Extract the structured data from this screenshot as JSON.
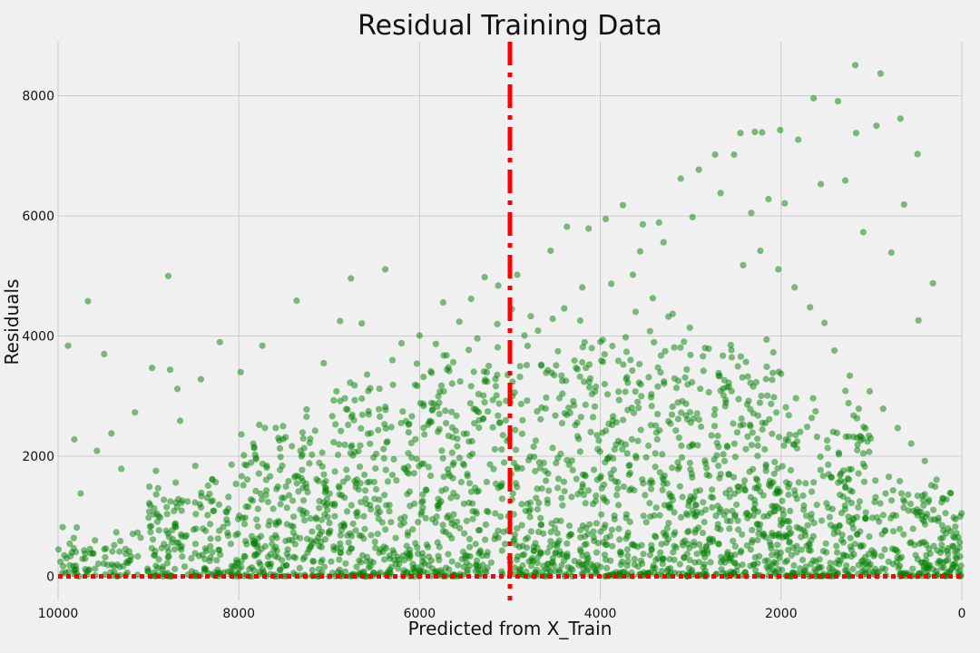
{
  "chart_data": {
    "type": "scatter",
    "title": "Residual Training Data",
    "xlabel": "Predicted from X_Train",
    "ylabel": "Residuals",
    "xlim": [
      10000,
      0
    ],
    "ylim": [
      -400,
      8900
    ],
    "x_inverted": true,
    "grid": true,
    "background": "#f0f0f0",
    "grid_color": "#cbcbcb",
    "point_color": "#008000",
    "line_color": "#ff0000",
    "x_ticks": [
      10000,
      8000,
      6000,
      4000,
      2000,
      0
    ],
    "x_tick_labels": [
      "10000",
      "8000",
      "6000",
      "4000",
      "2000",
      "0"
    ],
    "y_ticks": [
      0,
      2000,
      4000,
      6000,
      8000
    ],
    "y_tick_labels": [
      "0",
      "2000",
      "4000",
      "6000",
      "8000"
    ],
    "reference_lines": [
      {
        "orientation": "horizontal",
        "value": 0,
        "style": "dotted"
      },
      {
        "orientation": "vertical",
        "value": 5000,
        "style": "dashdot"
      }
    ],
    "series": [
      {
        "points": [
          [
            9950,
            820
          ],
          [
            9890,
            3840
          ],
          [
            9820,
            2280
          ],
          [
            9750,
            1380
          ],
          [
            9670,
            4580
          ],
          [
            9570,
            2090
          ],
          [
            9490,
            3700
          ],
          [
            9410,
            2380
          ],
          [
            9300,
            1790
          ],
          [
            9150,
            2730
          ],
          [
            8960,
            3470
          ],
          [
            8780,
            5000
          ],
          [
            8760,
            3440
          ],
          [
            8680,
            3120
          ],
          [
            8650,
            2590
          ],
          [
            8420,
            3280
          ],
          [
            8210,
            3900
          ],
          [
            7980,
            3400
          ],
          [
            7740,
            3840
          ],
          [
            7360,
            4590
          ],
          [
            7060,
            3550
          ],
          [
            6880,
            4250
          ],
          [
            6760,
            4960
          ],
          [
            6640,
            4210
          ],
          [
            6380,
            5110
          ],
          [
            6200,
            3880
          ],
          [
            6000,
            4010
          ],
          [
            5740,
            4560
          ],
          [
            5430,
            4620
          ],
          [
            5280,
            4980
          ],
          [
            5130,
            4840
          ],
          [
            4980,
            4450
          ],
          [
            4920,
            5020
          ],
          [
            4770,
            4330
          ],
          [
            4550,
            5420
          ],
          [
            4370,
            5820
          ],
          [
            4130,
            5790
          ],
          [
            3940,
            5950
          ],
          [
            3750,
            6180
          ],
          [
            3530,
            5860
          ],
          [
            3350,
            5890
          ],
          [
            3110,
            6620
          ],
          [
            2910,
            6770
          ],
          [
            2730,
            7020
          ],
          [
            2520,
            7020
          ],
          [
            2450,
            7380
          ],
          [
            2290,
            7400
          ],
          [
            2210,
            7390
          ],
          [
            2010,
            7430
          ],
          [
            1810,
            7270
          ],
          [
            1640,
            7960
          ],
          [
            1560,
            6530
          ],
          [
            1370,
            7910
          ],
          [
            1290,
            6590
          ],
          [
            1170,
            7380
          ],
          [
            945,
            7500
          ],
          [
            900,
            8370
          ],
          [
            1180,
            8510
          ],
          [
            680,
            7620
          ],
          [
            490,
            7030
          ],
          [
            320,
            4880
          ],
          [
            480,
            4260
          ],
          [
            640,
            6190
          ],
          [
            780,
            5390
          ],
          [
            1090,
            5730
          ],
          [
            1960,
            6210
          ],
          [
            2140,
            6280
          ],
          [
            2330,
            6050
          ],
          [
            2670,
            6380
          ],
          [
            2980,
            5980
          ],
          [
            3300,
            5560
          ],
          [
            3560,
            5410
          ],
          [
            3640,
            5020
          ],
          [
            3880,
            4870
          ],
          [
            4200,
            4810
          ],
          [
            4400,
            4460
          ],
          [
            4690,
            4090
          ],
          [
            5140,
            4200
          ],
          [
            5360,
            3960
          ],
          [
            5560,
            4240
          ],
          [
            5820,
            3870
          ],
          [
            6030,
            3540
          ],
          [
            6300,
            3600
          ],
          [
            6580,
            3360
          ],
          [
            6920,
            3080
          ],
          [
            7250,
            2780
          ],
          [
            7510,
            2500
          ],
          [
            7830,
            2150
          ],
          [
            8080,
            1860
          ],
          [
            8340,
            1510
          ],
          [
            8640,
            1220
          ],
          [
            8870,
            980
          ],
          [
            9120,
            730
          ],
          [
            9380,
            520
          ],
          [
            9610,
            380
          ],
          [
            9830,
            170
          ],
          [
            2470,
            2950
          ],
          [
            2600,
            3150
          ],
          [
            2800,
            3790
          ],
          [
            3010,
            4140
          ],
          [
            3200,
            4370
          ],
          [
            3420,
            4630
          ],
          [
            3720,
            3980
          ],
          [
            3970,
            3570
          ],
          [
            4180,
            3240
          ],
          [
            4420,
            3040
          ],
          [
            4650,
            2810
          ],
          [
            4860,
            2600
          ],
          [
            5190,
            2480
          ],
          [
            5420,
            2250
          ],
          [
            5640,
            2060
          ],
          [
            5900,
            1820
          ],
          [
            6120,
            1710
          ],
          [
            6350,
            1580
          ],
          [
            6600,
            1430
          ],
          [
            6830,
            1310
          ],
          [
            7040,
            1180
          ],
          [
            7290,
            1030
          ],
          [
            7560,
            920
          ],
          [
            7790,
            830
          ],
          [
            8010,
            710
          ],
          [
            8230,
            630
          ],
          [
            8480,
            540
          ],
          [
            8710,
            450
          ],
          [
            8940,
            350
          ],
          [
            9200,
            270
          ],
          [
            9450,
            190
          ],
          [
            9700,
            120
          ],
          [
            9920,
            60
          ],
          [
            1520,
            4220
          ],
          [
            1680,
            4480
          ],
          [
            1850,
            4810
          ],
          [
            2030,
            5110
          ],
          [
            2230,
            5420
          ],
          [
            2420,
            5180
          ],
          [
            1410,
            3760
          ],
          [
            1240,
            3340
          ],
          [
            1020,
            3080
          ],
          [
            870,
            2790
          ],
          [
            710,
            2470
          ],
          [
            560,
            2210
          ],
          [
            410,
            1920
          ],
          [
            280,
            1610
          ],
          [
            170,
            1280
          ],
          [
            90,
            980
          ],
          [
            40,
            650
          ],
          [
            20,
            330
          ],
          [
            60,
            150
          ],
          [
            140,
            80
          ],
          [
            250,
            260
          ]
        ],
        "density_model": {
          "count": 2400,
          "x_range": [
            0,
            10000
          ],
          "bins": [
            {
              "x": [
                9000,
                10000
              ],
              "y_max": 700,
              "share": 0.03
            },
            {
              "x": [
                8000,
                9000
              ],
              "y_max": 1400,
              "share": 0.07
            },
            {
              "x": [
                7000,
                8000
              ],
              "y_max": 2100,
              "share": 0.1
            },
            {
              "x": [
                6000,
                7000
              ],
              "y_max": 2600,
              "share": 0.11
            },
            {
              "x": [
                5000,
                6000
              ],
              "y_max": 3000,
              "share": 0.11
            },
            {
              "x": [
                4000,
                5000
              ],
              "y_max": 3300,
              "share": 0.12
            },
            {
              "x": [
                3000,
                4000
              ],
              "y_max": 3400,
              "share": 0.13
            },
            {
              "x": [
                2000,
                3000
              ],
              "y_max": 3100,
              "share": 0.14
            },
            {
              "x": [
                1000,
                2000
              ],
              "y_max": 2400,
              "share": 0.11
            },
            {
              "x": [
                0,
                1000
              ],
              "y_max": 1300,
              "share": 0.08
            }
          ]
        }
      }
    ]
  }
}
